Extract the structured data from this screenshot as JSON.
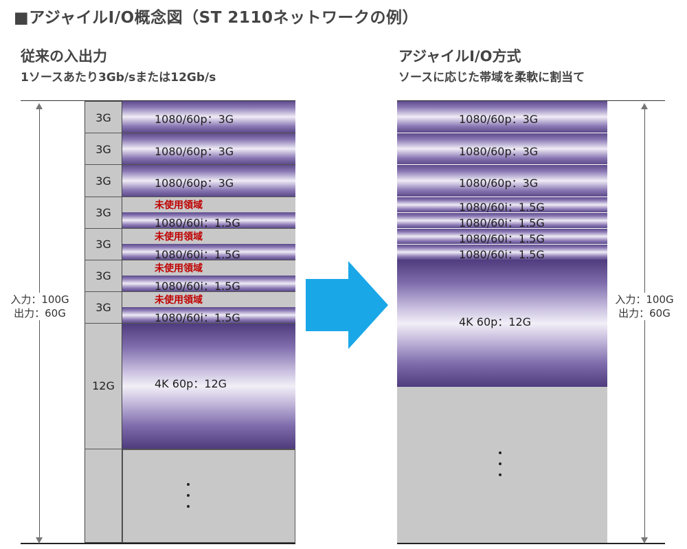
{
  "title": "■アジャイルI/O概念図（ST 2110ネットワークの例）",
  "left": {
    "heading": "従来の入出力",
    "subheading": "1ソースあたり3Gb/sまたは12Gb/s",
    "side_label": {
      "line1": "入力：100G",
      "line2": "出力：60G"
    },
    "slots": [
      {
        "size": "3G",
        "band": "1080/60p：3G"
      },
      {
        "size": "3G",
        "band": "1080/60p：3G"
      },
      {
        "size": "3G",
        "band": "1080/60p：3G"
      },
      {
        "size": "3G",
        "unused": "未使用領域",
        "band": "1080/60i：1.5G"
      },
      {
        "size": "3G",
        "unused": "未使用領域",
        "band": "1080/60i：1.5G"
      },
      {
        "size": "3G",
        "unused": "未使用領域",
        "band": "1080/60i：1.5G"
      },
      {
        "size": "3G",
        "unused": "未使用領域",
        "band": "1080/60i：1.5G"
      },
      {
        "size": "12G",
        "band": "4K 60p：12G"
      }
    ]
  },
  "right": {
    "heading": "アジャイルI/O方式",
    "subheading": "ソースに応じた帯域を柔軟に割当て",
    "side_label": {
      "line1": "入力：100G",
      "line2": "出力：60G"
    },
    "bands": [
      "1080/60p：3G",
      "1080/60p：3G",
      "1080/60p：3G",
      "1080/60i：1.5G",
      "1080/60i：1.5G",
      "1080/60i：1.5G",
      "1080/60i：1.5G",
      "4K 60p：12G"
    ]
  },
  "colors": {
    "arrow": "#1aa7e8",
    "unused_text": "#c00000",
    "empty_area": "#c8c8c8",
    "band_purple": "#5c4a8a"
  }
}
